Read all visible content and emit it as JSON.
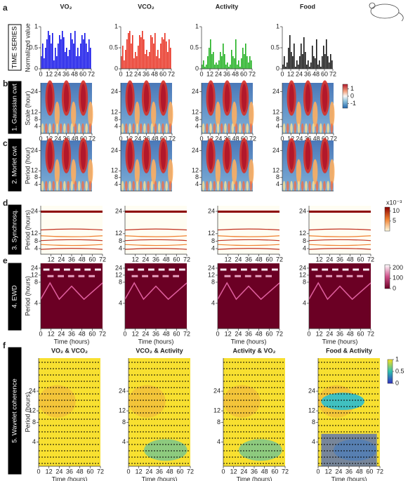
{
  "column_titles": [
    "VO₂",
    "VCO₂",
    "Activity",
    "Food"
  ],
  "rows": [
    {
      "letter": "a",
      "label": "TIME SERIES",
      "type": "bar",
      "y_label": "Normalized value",
      "xlim": [
        0,
        72
      ],
      "xticks": [
        0,
        12,
        24,
        36,
        48,
        60,
        72
      ],
      "ylim": [
        0,
        1
      ],
      "yticks": [
        0,
        0.5,
        1
      ],
      "x": [
        0,
        2,
        4,
        6,
        8,
        10,
        12,
        14,
        16,
        18,
        20,
        22,
        24,
        26,
        28,
        30,
        32,
        34,
        36,
        38,
        40,
        42,
        44,
        46,
        48,
        50,
        52,
        54,
        56,
        58,
        60,
        62,
        64,
        66,
        68,
        70
      ],
      "series": [
        {
          "name": "VO₂",
          "color": "#1010e8",
          "values": [
            0.3,
            0.6,
            0.25,
            0.5,
            0.7,
            0.9,
            0.8,
            0.6,
            0.85,
            0.2,
            0.5,
            0.3,
            0.6,
            0.8,
            0.7,
            0.9,
            0.75,
            0.4,
            0.5,
            0.3,
            0.45,
            0.85,
            0.7,
            0.6,
            0.9,
            0.3,
            0.5,
            0.3,
            0.6,
            0.8,
            0.7,
            0.85,
            0.6,
            0.4,
            0.7,
            0.5
          ]
        },
        {
          "name": "VCO₂",
          "color": "#e83020",
          "values": [
            0.3,
            0.55,
            0.2,
            0.45,
            0.7,
            0.85,
            0.9,
            0.6,
            0.8,
            0.25,
            0.4,
            0.3,
            0.55,
            0.8,
            0.75,
            0.9,
            0.7,
            0.35,
            0.45,
            0.3,
            0.4,
            0.8,
            0.75,
            0.6,
            0.85,
            0.3,
            0.45,
            0.25,
            0.6,
            0.75,
            0.7,
            0.85,
            0.65,
            0.4,
            0.7,
            0.5
          ]
        },
        {
          "name": "Activity",
          "color": "#20b020",
          "values": [
            0.1,
            0.2,
            0.05,
            0.1,
            0.3,
            0.5,
            0.7,
            0.35,
            0.4,
            0.1,
            0.15,
            0.1,
            0.2,
            0.4,
            0.3,
            0.6,
            0.35,
            0.1,
            0.15,
            0.05,
            0.1,
            0.45,
            0.3,
            0.25,
            0.7,
            0.1,
            0.2,
            0.05,
            0.25,
            0.5,
            0.35,
            0.6,
            0.3,
            0.15,
            0.3,
            0.2
          ]
        },
        {
          "name": "Food",
          "color": "#151515",
          "values": [
            0.1,
            0.3,
            0.05,
            0.15,
            0.5,
            0.8,
            0.4,
            0.3,
            0.6,
            0.05,
            0.2,
            0.1,
            0.3,
            0.6,
            0.35,
            0.75,
            0.4,
            0.1,
            0.2,
            0.05,
            0.15,
            0.55,
            0.3,
            0.25,
            0.7,
            0.1,
            0.2,
            0.05,
            0.3,
            0.55,
            0.35,
            0.7,
            0.3,
            0.15,
            0.35,
            0.2
          ]
        }
      ]
    },
    {
      "letter": "b",
      "label": "1. Gaussian cwt",
      "type": "heatmap",
      "colormap": "redblue",
      "y_label": "Scale (hour)",
      "xlim": [
        0,
        72
      ],
      "xticks": [
        0,
        12,
        24,
        36,
        48,
        60,
        72
      ],
      "ylim": [
        0,
        29
      ],
      "yticks": [
        4,
        8,
        12,
        24
      ],
      "colorbar": {
        "lim": [
          -1.6,
          1.6
        ],
        "ticks": [
          1,
          0,
          -1
        ]
      }
    },
    {
      "letter": "c",
      "label": "2. Morlet cwt",
      "type": "heatmap",
      "colormap": "redblue",
      "y_label": "Period (hour)",
      "xlim": [
        0,
        72
      ],
      "ylim": [
        0,
        30
      ],
      "yticks": [
        4,
        8,
        12,
        24
      ]
    },
    {
      "letter": "d",
      "label": "3. Synchrosq.",
      "type": "heatmap",
      "colormap": "synchro",
      "y_label": "Period (hours)",
      "xlim": [
        0,
        72
      ],
      "xticks": [
        12,
        24,
        36,
        48,
        60,
        72
      ],
      "ylim": [
        1,
        27
      ],
      "yticks": [
        4,
        8,
        12,
        24
      ],
      "colorbar": {
        "lim": [
          0,
          12
        ],
        "ticks": [
          10,
          5
        ],
        "exponent": "x10⁻³"
      }
    },
    {
      "letter": "e",
      "label": "4. EWD",
      "type": "heatmap",
      "colormap": "ewd",
      "y_label": "Period (hours)",
      "x_label": "Time (hours)",
      "xlim": [
        0,
        72
      ],
      "xticks": [
        0,
        12,
        24,
        36,
        48,
        60,
        72
      ],
      "yscale": "reciprocal",
      "ylim": [
        2.5,
        77
      ],
      "yticks": [
        24,
        12,
        8,
        4
      ],
      "colorbar": {
        "lim": [
          0,
          230
        ],
        "ticks": [
          200,
          100,
          0
        ]
      }
    },
    {
      "letter": "f",
      "label": "5. Wavelet coherence",
      "type": "heatmap",
      "colormap": "coherence",
      "y_label": "Period (hours)",
      "x_label": "Time (hours)",
      "panel_titles": [
        "VO₂ & VCO₂",
        "VCO₂ & Activity",
        "Activity & VO₂",
        "Food & Activity"
      ],
      "xlim": [
        0,
        72
      ],
      "xticks": [
        0,
        12,
        24,
        36,
        48,
        60,
        72
      ],
      "yscale": "log",
      "ylim": [
        1.7,
        77
      ],
      "yticks": [
        4,
        8,
        12,
        24
      ],
      "colorbar": {
        "lim": [
          0,
          1
        ],
        "ticks": [
          1,
          0.5,
          0
        ]
      }
    }
  ]
}
